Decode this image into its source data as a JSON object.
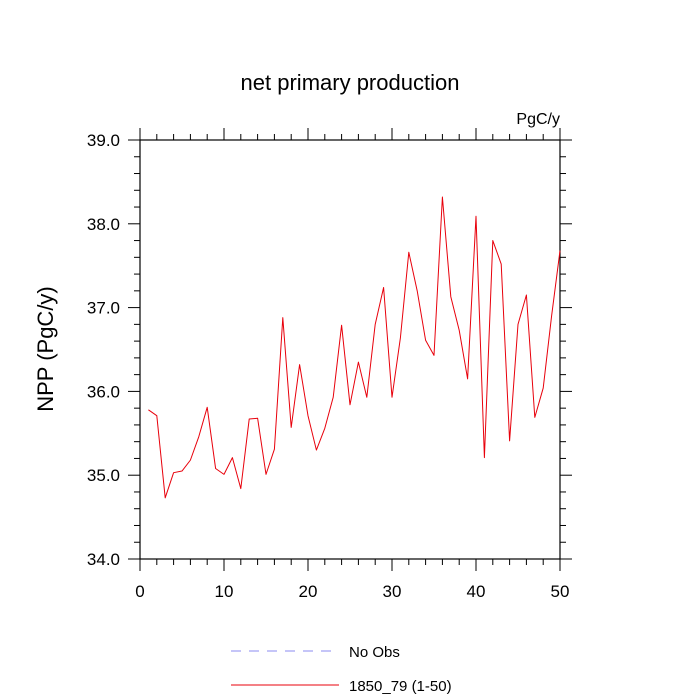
{
  "chart_data": {
    "type": "line",
    "title": "net primary production",
    "units_label": "PgC/y",
    "xlabel": "",
    "ylabel": "NPP  (PgC/y)",
    "xlim": [
      0,
      50
    ],
    "ylim": [
      34.0,
      39.0
    ],
    "x_ticks": [
      0,
      10,
      20,
      30,
      40,
      50
    ],
    "x_tick_labels": [
      "0",
      "10",
      "20",
      "30",
      "40",
      "50"
    ],
    "y_ticks": [
      34.0,
      35.0,
      36.0,
      37.0,
      38.0,
      39.0
    ],
    "y_tick_labels": [
      "34.0",
      "35.0",
      "36.0",
      "37.0",
      "38.0",
      "39.0"
    ],
    "grid": false,
    "legend_position": "bottom-center",
    "series": [
      {
        "name": "1850_79 (1-50)",
        "color": "#e8000b",
        "style": "solid",
        "x": [
          1,
          2,
          3,
          4,
          5,
          6,
          7,
          8,
          9,
          10,
          11,
          12,
          13,
          14,
          15,
          16,
          17,
          18,
          19,
          20,
          21,
          22,
          23,
          24,
          25,
          26,
          27,
          28,
          29,
          30,
          31,
          32,
          33,
          34,
          35,
          36,
          37,
          38,
          39,
          40,
          41,
          42,
          43,
          44,
          45,
          46,
          47,
          48,
          49,
          50
        ],
        "values": [
          35.78,
          35.71,
          34.73,
          35.03,
          35.05,
          35.18,
          35.46,
          35.81,
          35.08,
          35.01,
          35.21,
          34.84,
          35.67,
          35.68,
          35.01,
          35.31,
          36.88,
          35.57,
          36.32,
          35.71,
          35.3,
          35.56,
          35.93,
          36.79,
          35.84,
          36.35,
          35.93,
          36.8,
          37.24,
          35.93,
          36.64,
          37.66,
          37.2,
          36.61,
          36.43,
          38.32,
          37.13,
          36.73,
          36.15,
          38.09,
          35.21,
          37.8,
          37.52,
          35.41,
          36.8,
          37.15,
          35.69,
          36.04,
          36.9,
          37.68
        ]
      }
    ],
    "legend": [
      {
        "label": "No Obs",
        "color": "#8b8bf0",
        "style": "dashed"
      },
      {
        "label": "1850_79 (1-50)",
        "color": "#e8000b",
        "style": "solid"
      }
    ]
  }
}
